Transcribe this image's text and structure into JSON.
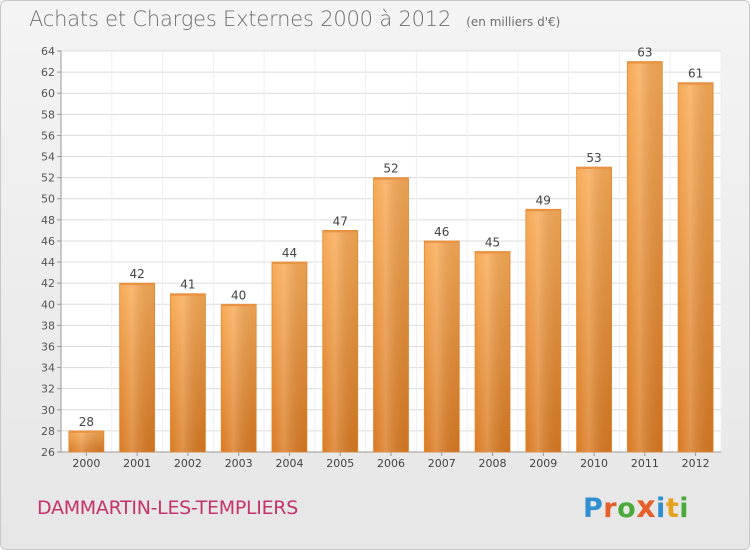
{
  "header": {
    "title": "Achats et Charges Externes 2000 à 2012",
    "unit": "(en milliers d'€)"
  },
  "footer": {
    "commune": "DAMMARTIN-LES-TEMPLIERS",
    "logo_letters": [
      "P",
      "r",
      "o",
      "x",
      "i",
      "t",
      "i"
    ],
    "logo_colors": [
      "#2f8fd1",
      "#e65e2a",
      "#4aa93b",
      "#e65e2a",
      "#2f8fd1",
      "#e6a21f",
      "#4aa93b"
    ]
  },
  "chart_data": {
    "type": "bar",
    "categories": [
      "2000",
      "2001",
      "2002",
      "2003",
      "2004",
      "2005",
      "2006",
      "2007",
      "2008",
      "2009",
      "2010",
      "2011",
      "2012"
    ],
    "values": [
      28,
      42,
      41,
      40,
      44,
      47,
      52,
      46,
      45,
      49,
      53,
      63,
      61
    ],
    "data_labels": [
      "28",
      "42",
      "41",
      "40",
      "44",
      "47",
      "52",
      "46",
      "45",
      "49",
      "53",
      "63",
      "61"
    ],
    "ylim": [
      26,
      64
    ],
    "yticks": [
      26,
      28,
      30,
      32,
      34,
      36,
      38,
      40,
      42,
      44,
      46,
      48,
      50,
      52,
      54,
      56,
      58,
      60,
      62,
      64
    ],
    "grid": true,
    "colors": {
      "bar_light": "#f8aa56",
      "bar_dark": "#d97a22",
      "bar_edge": "#e08a35"
    }
  }
}
